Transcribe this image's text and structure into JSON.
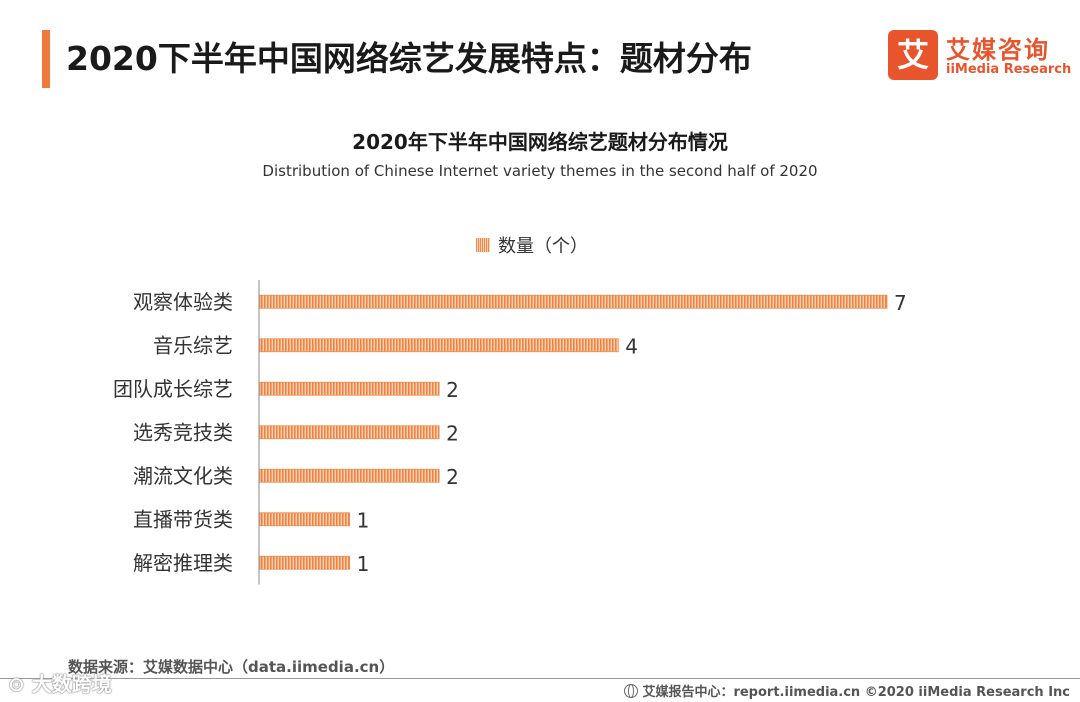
{
  "page": {
    "title": "2020下半年中国网络综艺发展特点：题材分布"
  },
  "brand": {
    "logo_mark": "艾",
    "name_cn": "艾媒咨询",
    "name_en": "iiMedia Research",
    "color": "#e8552d"
  },
  "chart_data": {
    "type": "bar",
    "orientation": "horizontal",
    "title": "2020年下半年中国网络综艺题材分布情况",
    "subtitle": "Distribution of Chinese Internet variety themes in the second half of 2020",
    "legend_position": "top-center",
    "categories": [
      "观察体验类",
      "音乐综艺",
      "团队成长综艺",
      "选秀竞技类",
      "潮流文化类",
      "直播带货类",
      "解密推理类"
    ],
    "series": [
      {
        "name": "数量（个）",
        "values": [
          7,
          4,
          2,
          2,
          2,
          1,
          1
        ],
        "color": "#f08a4b"
      }
    ],
    "xlim": [
      0,
      7
    ],
    "grid": false
  },
  "footer": {
    "source": "数据来源：艾媒数据中心（data.iimedia.cn）",
    "right_text": "艾媒报告中心：report.iimedia.cn   ©2020  iiMedia Research  Inc",
    "icon": "globe-icon"
  },
  "watermark": {
    "text": "⊙ 大数跨境"
  }
}
